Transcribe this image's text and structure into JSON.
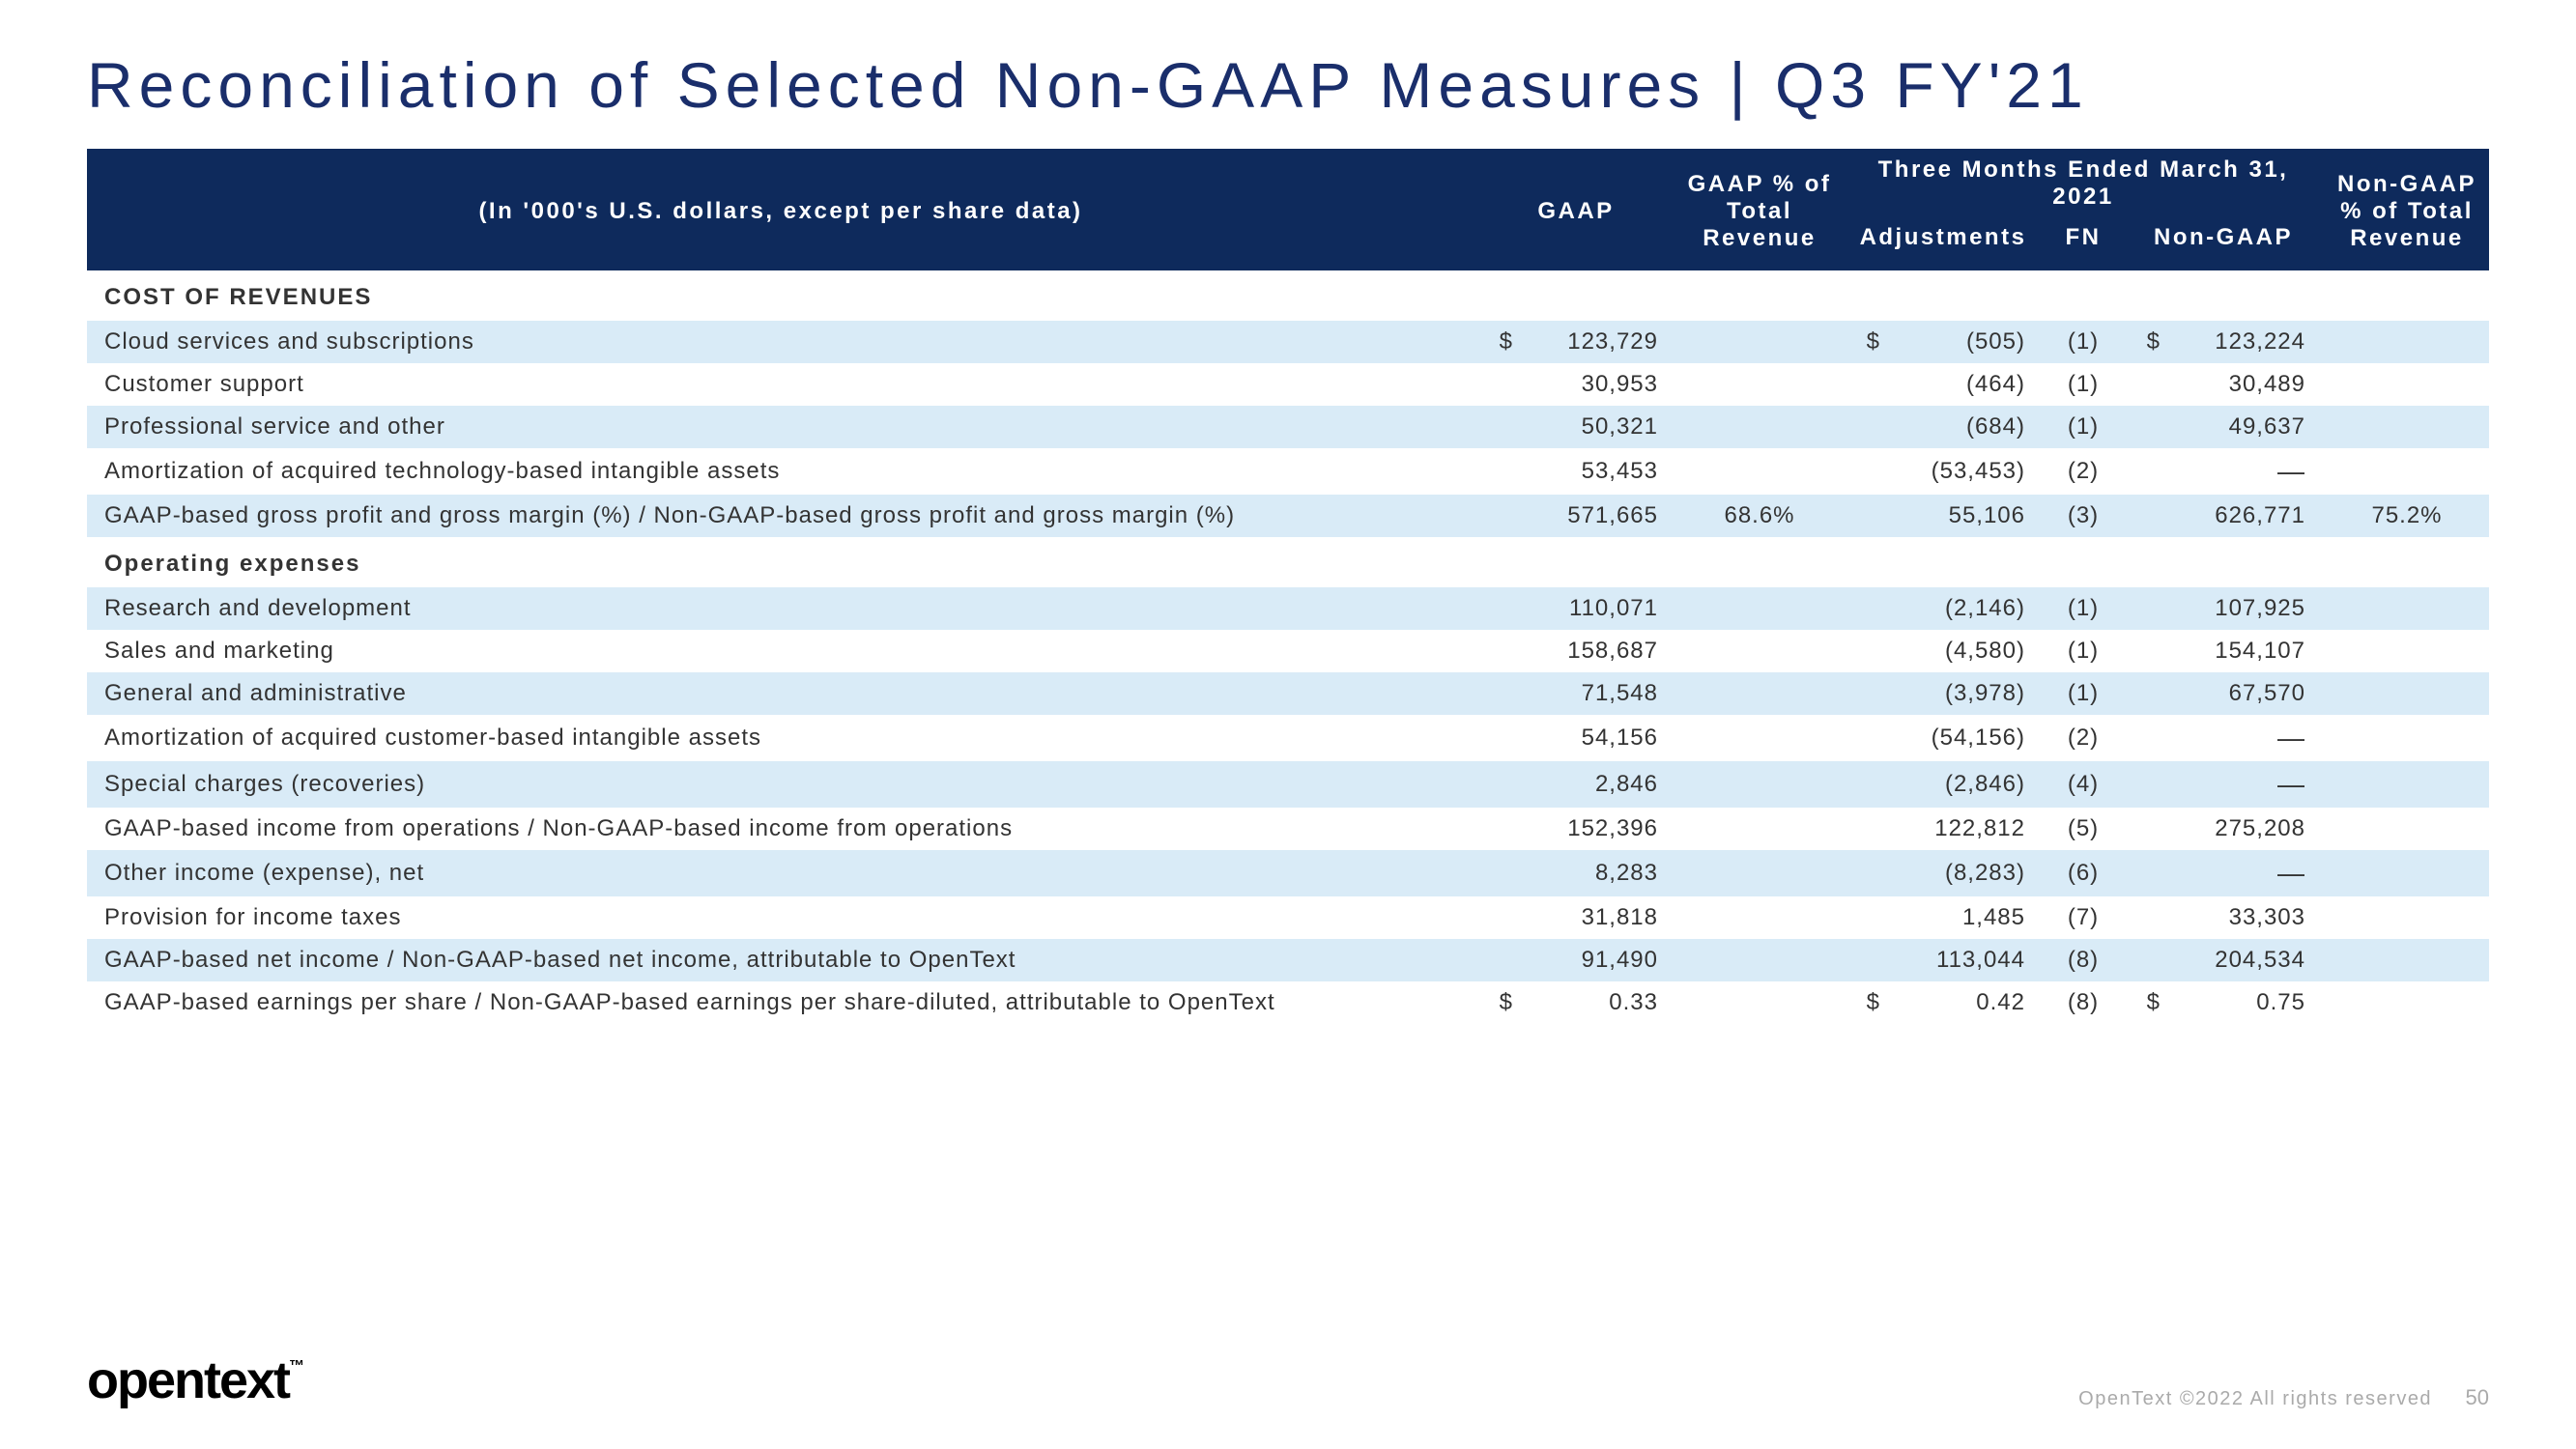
{
  "title": "Reconciliation of Selected Non-GAAP Measures | Q3 FY'21",
  "header": {
    "desc": "(In '000's U.S. dollars, except per share data)",
    "period": "Three Months Ended March 31, 2021",
    "cols": {
      "gaap": "GAAP",
      "gaap_pct": "GAAP % of Total Revenue",
      "adj": "Adjustments",
      "fn": "FN",
      "nongaap": "Non-GAAP",
      "nongaap_pct": "Non-GAAP % of Total Revenue"
    }
  },
  "sections": [
    {
      "label": "COST OF REVENUES"
    },
    {
      "label": "Operating expenses"
    }
  ],
  "rows": [
    {
      "desc": "Cloud services and subscriptions",
      "sym1": "$",
      "gaap": "123,729",
      "gaap_pct": "",
      "sym2": "$",
      "adj": "(505)",
      "fn": "(1)",
      "sym3": "$",
      "nongaap": "123,224",
      "nongaap_pct": "",
      "shade": true
    },
    {
      "desc": "Customer support",
      "sym1": "",
      "gaap": "30,953",
      "gaap_pct": "",
      "sym2": "",
      "adj": "(464)",
      "fn": "(1)",
      "sym3": "",
      "nongaap": "30,489",
      "nongaap_pct": "",
      "shade": false
    },
    {
      "desc": "Professional service and other",
      "sym1": "",
      "gaap": "50,321",
      "gaap_pct": "",
      "sym2": "",
      "adj": "(684)",
      "fn": "(1)",
      "sym3": "",
      "nongaap": "49,637",
      "nongaap_pct": "",
      "shade": true
    },
    {
      "desc": "Amortization of acquired technology-based intangible assets",
      "sym1": "",
      "gaap": "53,453",
      "gaap_pct": "",
      "sym2": "",
      "adj": "(53,453)",
      "fn": "(2)",
      "sym3": "",
      "nongaap": "—",
      "nongaap_pct": "",
      "shade": false
    },
    {
      "desc": "GAAP-based gross profit and gross margin (%) / Non-GAAP-based gross profit and gross margin (%)",
      "sym1": "",
      "gaap": "571,665",
      "gaap_pct": "68.6%",
      "sym2": "",
      "adj": "55,106",
      "fn": "(3)",
      "sym3": "",
      "nongaap": "626,771",
      "nongaap_pct": "75.2%",
      "shade": true
    },
    {
      "desc": "Research and development",
      "sym1": "",
      "gaap": "110,071",
      "gaap_pct": "",
      "sym2": "",
      "adj": "(2,146)",
      "fn": "(1)",
      "sym3": "",
      "nongaap": "107,925",
      "nongaap_pct": "",
      "shade": true
    },
    {
      "desc": "Sales and marketing",
      "sym1": "",
      "gaap": "158,687",
      "gaap_pct": "",
      "sym2": "",
      "adj": "(4,580)",
      "fn": "(1)",
      "sym3": "",
      "nongaap": "154,107",
      "nongaap_pct": "",
      "shade": false
    },
    {
      "desc": "General and administrative",
      "sym1": "",
      "gaap": "71,548",
      "gaap_pct": "",
      "sym2": "",
      "adj": "(3,978)",
      "fn": "(1)",
      "sym3": "",
      "nongaap": "67,570",
      "nongaap_pct": "",
      "shade": true
    },
    {
      "desc": "Amortization of acquired customer-based intangible assets",
      "sym1": "",
      "gaap": "54,156",
      "gaap_pct": "",
      "sym2": "",
      "adj": "(54,156)",
      "fn": "(2)",
      "sym3": "",
      "nongaap": "—",
      "nongaap_pct": "",
      "shade": false
    },
    {
      "desc": "Special charges (recoveries)",
      "sym1": "",
      "gaap": "2,846",
      "gaap_pct": "",
      "sym2": "",
      "adj": "(2,846)",
      "fn": "(4)",
      "sym3": "",
      "nongaap": "—",
      "nongaap_pct": "",
      "shade": true
    },
    {
      "desc": "GAAP-based income from operations / Non-GAAP-based income from operations",
      "sym1": "",
      "gaap": "152,396",
      "gaap_pct": "",
      "sym2": "",
      "adj": "122,812",
      "fn": "(5)",
      "sym3": "",
      "nongaap": "275,208",
      "nongaap_pct": "",
      "shade": false
    },
    {
      "desc": "Other income (expense), net",
      "sym1": "",
      "gaap": "8,283",
      "gaap_pct": "",
      "sym2": "",
      "adj": "(8,283)",
      "fn": "(6)",
      "sym3": "",
      "nongaap": "—",
      "nongaap_pct": "",
      "shade": true
    },
    {
      "desc": "Provision for income taxes",
      "sym1": "",
      "gaap": "31,818",
      "gaap_pct": "",
      "sym2": "",
      "adj": "1,485",
      "fn": "(7)",
      "sym3": "",
      "nongaap": "33,303",
      "nongaap_pct": "",
      "shade": false
    },
    {
      "desc": "GAAP-based net income / Non-GAAP-based net income, attributable to OpenText",
      "sym1": "",
      "gaap": "91,490",
      "gaap_pct": "",
      "sym2": "",
      "adj": "113,044",
      "fn": "(8)",
      "sym3": "",
      "nongaap": "204,534",
      "nongaap_pct": "",
      "shade": true
    },
    {
      "desc": "GAAP-based earnings per share / Non-GAAP-based earnings per share-diluted, attributable to OpenText",
      "sym1": "$",
      "gaap": "0.33",
      "gaap_pct": "",
      "sym2": "$",
      "adj": "0.42",
      "fn": "(8)",
      "sym3": "$",
      "nongaap": "0.75",
      "nongaap_pct": "",
      "shade": false
    }
  ],
  "footer": {
    "logo": "opentext",
    "tm": "™",
    "copyright": "OpenText ©2022 All rights reserved",
    "page": "50"
  },
  "colors": {
    "header_bg": "#0e2a5c",
    "shade_bg": "#d9ebf7",
    "title_color": "#1a2e6b"
  }
}
